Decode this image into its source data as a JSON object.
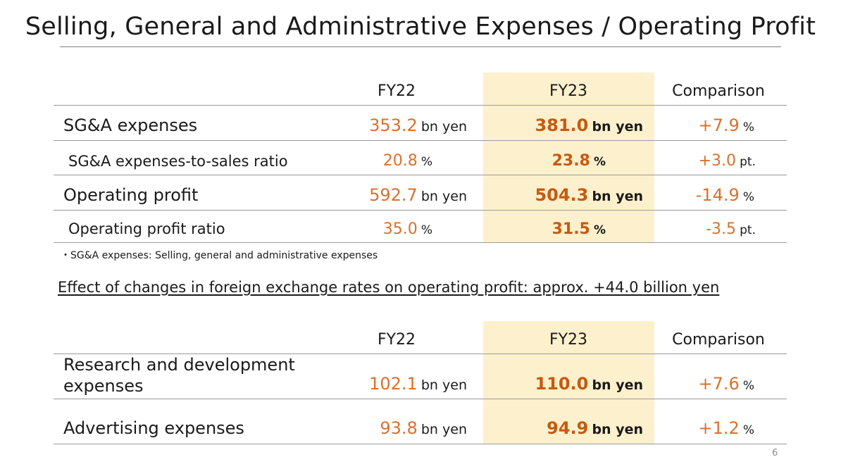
{
  "title": "Selling, General and Administrative Expenses / Operating Profit",
  "table1": {
    "headers": [
      "FY22",
      "FY23",
      "Comparison"
    ],
    "rows": [
      {
        "label": "SG&A expenses",
        "fy22": "353.2",
        "fy22_unit": "bn yen",
        "fy23": "381.0",
        "fy23_unit": "bn yen",
        "cmp": "+7.9",
        "cmp_unit": "%"
      },
      {
        "label": "SG&A expenses-to-sales ratio",
        "fy22": "20.8",
        "fy22_unit": "%",
        "fy23": "23.8",
        "fy23_unit": "%",
        "cmp": "+3.0",
        "cmp_unit": "pt."
      },
      {
        "label": "Operating profit",
        "fy22": "592.7",
        "fy22_unit": "bn yen",
        "fy23": "504.3",
        "fy23_unit": "bn yen",
        "cmp": "-14.9",
        "cmp_unit": "%"
      },
      {
        "label": "Operating profit ratio",
        "fy22": "35.0",
        "fy22_unit": "%",
        "fy23": "31.5",
        "fy23_unit": "%",
        "cmp": "-3.5",
        "cmp_unit": "pt."
      }
    ]
  },
  "footnote": "・SG&A expenses: Selling, general and administrative expenses",
  "fx_note": "Effect of changes in foreign exchange rates on operating profit: approx. +44.0 billion yen",
  "table2": {
    "headers": [
      "FY22",
      "FY23",
      "Comparison"
    ],
    "rows": [
      {
        "label_line1": "Research and development",
        "label_line2": "expenses",
        "fy22": "102.1",
        "fy22_unit": "bn yen",
        "fy23": "110.0",
        "fy23_unit": "bn yen",
        "cmp": "+7.6",
        "cmp_unit": "%"
      },
      {
        "label": "Advertising expenses",
        "fy22": "93.8",
        "fy22_unit": "bn yen",
        "fy23": "94.9",
        "fy23_unit": "bn yen",
        "cmp": "+1.2",
        "cmp_unit": "%"
      }
    ]
  },
  "page_number": "6"
}
